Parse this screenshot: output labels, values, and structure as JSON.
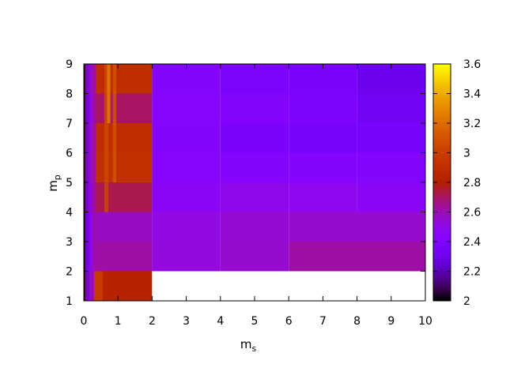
{
  "chart_data": {
    "type": "heatmap",
    "title": "",
    "xlabel": "m",
    "xlabel_sub": "s",
    "ylabel": "m",
    "ylabel_sub": "p",
    "xlim": [
      0,
      10
    ],
    "ylim": [
      1,
      9
    ],
    "xticks": [
      "0",
      "1",
      "2",
      "3",
      "4",
      "5",
      "6",
      "7",
      "8",
      "9",
      "10"
    ],
    "yticks": [
      "1",
      "2",
      "3",
      "4",
      "5",
      "6",
      "7",
      "8",
      "9"
    ],
    "colorbar": {
      "range": [
        2,
        3.6
      ],
      "ticks": [
        "2",
        "2.2",
        "2.4",
        "2.6",
        "2.8",
        "3",
        "3.2",
        "3.4",
        "3.6"
      ],
      "palette": "gnuplot rgbformulae 7,5,15 (black-blue-violet-red-orange-yellow)"
    },
    "cells": [
      {
        "x": [
          0,
          2
        ],
        "y": [
          1,
          2
        ],
        "v": 2.82
      },
      {
        "x": [
          2,
          10
        ],
        "y": [
          1,
          2
        ],
        "v": null
      },
      {
        "x": [
          0,
          2
        ],
        "y": [
          2,
          3
        ],
        "v": 2.62
      },
      {
        "x": [
          2,
          4
        ],
        "y": [
          2,
          3
        ],
        "v": 2.53
      },
      {
        "x": [
          4,
          6
        ],
        "y": [
          2,
          3
        ],
        "v": 2.56
      },
      {
        "x": [
          6,
          10
        ],
        "y": [
          2,
          3
        ],
        "v": 2.62
      },
      {
        "x": [
          0,
          2
        ],
        "y": [
          3,
          4
        ],
        "v": 2.58
      },
      {
        "x": [
          2,
          4
        ],
        "y": [
          3,
          4
        ],
        "v": 2.52
      },
      {
        "x": [
          4,
          6
        ],
        "y": [
          3,
          4
        ],
        "v": 2.55
      },
      {
        "x": [
          6,
          10
        ],
        "y": [
          3,
          4
        ],
        "v": 2.56
      },
      {
        "x": [
          0,
          2
        ],
        "y": [
          4,
          5
        ],
        "v": 2.72
      },
      {
        "x": [
          2,
          4
        ],
        "y": [
          4,
          5
        ],
        "v": 2.47
      },
      {
        "x": [
          4,
          6
        ],
        "y": [
          4,
          5
        ],
        "v": 2.5
      },
      {
        "x": [
          6,
          8
        ],
        "y": [
          4,
          5
        ],
        "v": 2.49
      },
      {
        "x": [
          8,
          10
        ],
        "y": [
          4,
          5
        ],
        "v": 2.47
      },
      {
        "x": [
          0,
          2
        ],
        "y": [
          5,
          6
        ],
        "v": 2.92
      },
      {
        "x": [
          2,
          4
        ],
        "y": [
          5,
          6
        ],
        "v": 2.44
      },
      {
        "x": [
          4,
          6
        ],
        "y": [
          5,
          6
        ],
        "v": 2.42
      },
      {
        "x": [
          6,
          8
        ],
        "y": [
          5,
          6
        ],
        "v": 2.43
      },
      {
        "x": [
          8,
          10
        ],
        "y": [
          5,
          6
        ],
        "v": 2.42
      },
      {
        "x": [
          0,
          2
        ],
        "y": [
          6,
          7
        ],
        "v": 2.9
      },
      {
        "x": [
          2,
          4
        ],
        "y": [
          6,
          7
        ],
        "v": 2.43
      },
      {
        "x": [
          4,
          6
        ],
        "y": [
          6,
          7
        ],
        "v": 2.37
      },
      {
        "x": [
          6,
          8
        ],
        "y": [
          6,
          7
        ],
        "v": 2.35
      },
      {
        "x": [
          8,
          10
        ],
        "y": [
          6,
          7
        ],
        "v": 2.36
      },
      {
        "x": [
          0,
          2
        ],
        "y": [
          7,
          8
        ],
        "v": 2.7
      },
      {
        "x": [
          2,
          4
        ],
        "y": [
          7,
          8
        ],
        "v": 2.44
      },
      {
        "x": [
          4,
          6
        ],
        "y": [
          7,
          8
        ],
        "v": 2.43
      },
      {
        "x": [
          6,
          8
        ],
        "y": [
          7,
          8
        ],
        "v": 2.39
      },
      {
        "x": [
          8,
          10
        ],
        "y": [
          7,
          8
        ],
        "v": 2.33
      },
      {
        "x": [
          0,
          2
        ],
        "y": [
          8,
          9
        ],
        "v": 2.9
      },
      {
        "x": [
          2,
          4
        ],
        "y": [
          8,
          9
        ],
        "v": 2.43
      },
      {
        "x": [
          4,
          6
        ],
        "y": [
          8,
          9
        ],
        "v": 2.38
      },
      {
        "x": [
          6,
          8
        ],
        "y": [
          8,
          9
        ],
        "v": 2.37
      },
      {
        "x": [
          8,
          10
        ],
        "y": [
          8,
          9
        ],
        "v": 2.3
      }
    ],
    "stripes": [
      {
        "x": [
          0,
          0.05
        ],
        "y": [
          1,
          9
        ],
        "v": 2.05
      },
      {
        "x": [
          0.05,
          0.15
        ],
        "y": [
          1,
          9
        ],
        "v": 2.3
      },
      {
        "x": [
          0.15,
          0.25
        ],
        "y": [
          1,
          9
        ],
        "v": 2.45
      },
      {
        "x": [
          0.25,
          0.35
        ],
        "y": [
          1,
          9
        ],
        "v": 2.6
      },
      {
        "x": [
          0.6,
          0.72
        ],
        "y": [
          4,
          9
        ],
        "v": 3.05
      },
      {
        "x": [
          0.68,
          0.78
        ],
        "y": [
          7,
          9
        ],
        "v": 3.25
      },
      {
        "x": [
          0.85,
          0.95
        ],
        "y": [
          5,
          9
        ],
        "v": 3.1
      },
      {
        "x": [
          0.3,
          0.55
        ],
        "y": [
          1,
          2
        ],
        "v": 3.0
      }
    ]
  }
}
